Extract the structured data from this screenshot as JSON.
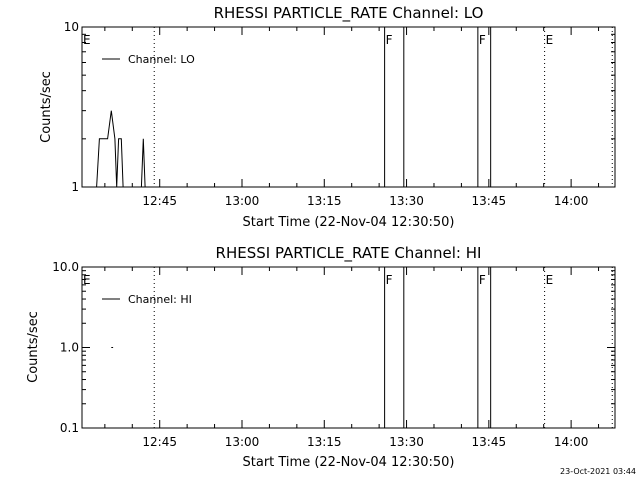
{
  "chart_data": [
    {
      "type": "line",
      "title": "RHESSI PARTICLE_RATE Channel: LO",
      "xlabel": "Start Time (22-Nov-04 12:30:50)",
      "ylabel": "Counts/sec",
      "yscale": "log",
      "ylim": [
        1,
        10
      ],
      "y_ticks": [
        1,
        10
      ],
      "y_tick_labels": [
        "1",
        "10"
      ],
      "x_range": [
        "12:30:50",
        "14:08:00"
      ],
      "x_ticks": [
        "12:45",
        "13:00",
        "13:15",
        "13:30",
        "13:45",
        "14:00"
      ],
      "legend": {
        "position": "top-left",
        "entries": [
          "Channel: LO"
        ]
      },
      "series": [
        {
          "name": "Channel: LO",
          "points": [
            [
              "12:33:30",
              1
            ],
            [
              "12:34:00",
              2
            ],
            [
              "12:35:30",
              2
            ],
            [
              "12:36:10",
              3
            ],
            [
              "12:36:50",
              2
            ],
            [
              "12:37:10",
              1
            ],
            [
              "12:37:30",
              2
            ],
            [
              "12:38:00",
              2
            ],
            [
              "12:38:20",
              1
            ],
            [
              "12:41:40",
              1
            ],
            [
              "12:42:00",
              2
            ],
            [
              "12:42:20",
              1
            ]
          ]
        }
      ],
      "event_markers": [
        {
          "time": "12:30:50",
          "label": "E",
          "style": "dotted"
        },
        {
          "time": "12:44:00",
          "label": "",
          "style": "dotted"
        },
        {
          "time": "13:26:00",
          "label": "F",
          "style": "solid"
        },
        {
          "time": "13:29:30",
          "label": "",
          "style": "solid"
        },
        {
          "time": "13:43:00",
          "label": "F",
          "style": "solid"
        },
        {
          "time": "13:45:20",
          "label": "",
          "style": "solid"
        },
        {
          "time": "13:55:10",
          "label": "E",
          "style": "dotted"
        },
        {
          "time": "14:07:30",
          "label": "",
          "style": "dotted"
        }
      ]
    },
    {
      "type": "line",
      "title": "RHESSI PARTICLE_RATE Channel: HI",
      "xlabel": "Start Time (22-Nov-04 12:30:50)",
      "ylabel": "Counts/sec",
      "yscale": "log",
      "ylim": [
        0.1,
        10
      ],
      "y_ticks": [
        0.1,
        1,
        10
      ],
      "y_tick_labels": [
        "0.1",
        "1.0",
        "10.0"
      ],
      "x_range": [
        "12:30:50",
        "14:08:00"
      ],
      "x_ticks": [
        "12:45",
        "13:00",
        "13:15",
        "13:30",
        "13:45",
        "14:00"
      ],
      "legend": {
        "position": "top-left",
        "entries": [
          "Channel: HI"
        ]
      },
      "series": [
        {
          "name": "Channel: HI",
          "points": [
            [
              "12:36:10",
              1
            ],
            [
              "12:36:30",
              1
            ]
          ]
        }
      ],
      "event_markers": [
        {
          "time": "12:30:50",
          "label": "E",
          "style": "dotted"
        },
        {
          "time": "12:44:00",
          "label": "",
          "style": "dotted"
        },
        {
          "time": "13:26:00",
          "label": "F",
          "style": "solid"
        },
        {
          "time": "13:29:30",
          "label": "",
          "style": "solid"
        },
        {
          "time": "13:43:00",
          "label": "F",
          "style": "solid"
        },
        {
          "time": "13:45:20",
          "label": "",
          "style": "solid"
        },
        {
          "time": "13:55:10",
          "label": "E",
          "style": "dotted"
        },
        {
          "time": "14:07:30",
          "label": "",
          "style": "dotted"
        }
      ]
    }
  ],
  "footer": {
    "timestamp": "23-Oct-2021 03:44"
  }
}
